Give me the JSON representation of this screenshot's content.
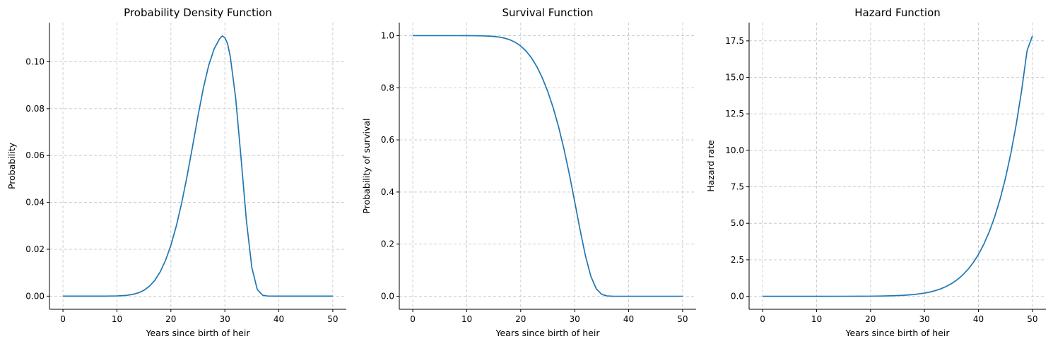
{
  "chart_data": [
    {
      "type": "line",
      "title": "Probability Density Function",
      "xlabel": "Years since birth of heir",
      "ylabel": "Probability",
      "xlim": [
        -2.5,
        52.5
      ],
      "ylim": [
        -0.0056,
        0.1167
      ],
      "xticks": [
        0,
        10,
        20,
        30,
        40,
        50
      ],
      "xtick_labels": [
        "0",
        "10",
        "20",
        "30",
        "40",
        "50"
      ],
      "yticks": [
        0,
        0.02,
        0.04,
        0.06,
        0.08,
        0.1
      ],
      "ytick_labels": [
        "0.00",
        "0.02",
        "0.04",
        "0.06",
        "0.08",
        "0.10"
      ],
      "grid": true,
      "color": "#1f77b4",
      "series": [
        {
          "x": [
            0,
            2,
            4,
            6,
            8,
            10,
            11,
            12,
            13,
            14,
            15,
            16,
            17,
            18,
            19,
            20,
            21,
            22,
            23,
            24,
            25,
            26,
            27,
            28,
            29,
            29.5,
            30,
            30.5,
            31,
            32,
            33,
            34,
            35,
            36,
            37,
            38,
            39,
            40,
            42,
            44,
            46,
            48,
            50
          ],
          "y": [
            0,
            0,
            0,
            0,
            2e-05,
            0.0001,
            0.0002,
            0.0004,
            0.0008,
            0.0014,
            0.0025,
            0.0042,
            0.0067,
            0.0103,
            0.0152,
            0.0217,
            0.0299,
            0.0398,
            0.0512,
            0.0637,
            0.0766,
            0.0886,
            0.0984,
            0.1054,
            0.1097,
            0.111,
            0.1103,
            0.1077,
            0.1023,
            0.0846,
            0.0589,
            0.032,
            0.0122,
            0.0029,
            0.0004,
            3e-05,
            0,
            0,
            0,
            0,
            0,
            0,
            0
          ]
        }
      ]
    },
    {
      "type": "line",
      "title": "Survival Function",
      "xlabel": "Years since birth of heir",
      "ylabel": "Probability of survival",
      "xlim": [
        -2.5,
        52.5
      ],
      "ylim": [
        -0.05,
        1.05
      ],
      "xticks": [
        0,
        10,
        20,
        30,
        40,
        50
      ],
      "xtick_labels": [
        "0",
        "10",
        "20",
        "30",
        "40",
        "50"
      ],
      "yticks": [
        0,
        0.2,
        0.4,
        0.6,
        0.8,
        1.0
      ],
      "ytick_labels": [
        "0.0",
        "0.2",
        "0.4",
        "0.6",
        "0.8",
        "1.0"
      ],
      "grid": true,
      "color": "#1f77b4",
      "series": [
        {
          "x": [
            0,
            2,
            4,
            6,
            8,
            10,
            11,
            12,
            13,
            14,
            15,
            16,
            17,
            18,
            19,
            20,
            21,
            22,
            23,
            24,
            25,
            26,
            27,
            28,
            29,
            30,
            31,
            32,
            33,
            34,
            35,
            36,
            37,
            38,
            39,
            40,
            42,
            44,
            46,
            48,
            50
          ],
          "y": [
            1,
            1,
            1,
            1,
            1,
            0.9998,
            0.9997,
            0.9995,
            0.999,
            0.9982,
            0.9968,
            0.9944,
            0.9904,
            0.9839,
            0.9743,
            0.9603,
            0.9407,
            0.9145,
            0.8805,
            0.838,
            0.7862,
            0.7244,
            0.6514,
            0.5663,
            0.4694,
            0.3633,
            0.2545,
            0.1546,
            0.0764,
            0.0286,
            0.0073,
            0.0012,
            0.0001,
            0,
            0,
            0,
            0,
            0,
            0,
            0,
            0
          ]
        }
      ]
    },
    {
      "type": "line",
      "title": "Hazard Function",
      "xlabel": "Years since birth of heir",
      "ylabel": "Hazard rate",
      "xlim": [
        -2.5,
        52.5
      ],
      "ylim": [
        -0.89,
        18.75
      ],
      "xticks": [
        0,
        10,
        20,
        30,
        40,
        50
      ],
      "xtick_labels": [
        "0",
        "10",
        "20",
        "30",
        "40",
        "50"
      ],
      "yticks": [
        0,
        2.5,
        5.0,
        7.5,
        10.0,
        12.5,
        15.0,
        17.5
      ],
      "ytick_labels": [
        "0.0",
        "2.5",
        "5.0",
        "7.5",
        "10.0",
        "12.5",
        "15.0",
        "17.5"
      ],
      "grid": true,
      "color": "#1f77b4",
      "series": [
        {
          "x": [
            0,
            5,
            10,
            15,
            18,
            20,
            22,
            24,
            26,
            28,
            30,
            31,
            32,
            33,
            34,
            35,
            36,
            37,
            38,
            39,
            40,
            41,
            42,
            43,
            44,
            45,
            46,
            47,
            48,
            49,
            50
          ],
          "y": [
            0,
            0,
            0.0001,
            0.001,
            0.004,
            0.008,
            0.017,
            0.034,
            0.065,
            0.12,
            0.22,
            0.29,
            0.39,
            0.51,
            0.67,
            0.87,
            1.12,
            1.43,
            1.82,
            2.29,
            2.87,
            3.57,
            4.42,
            5.44,
            6.65,
            8.09,
            9.79,
            11.78,
            14.11,
            16.82,
            17.85
          ]
        }
      ]
    }
  ]
}
